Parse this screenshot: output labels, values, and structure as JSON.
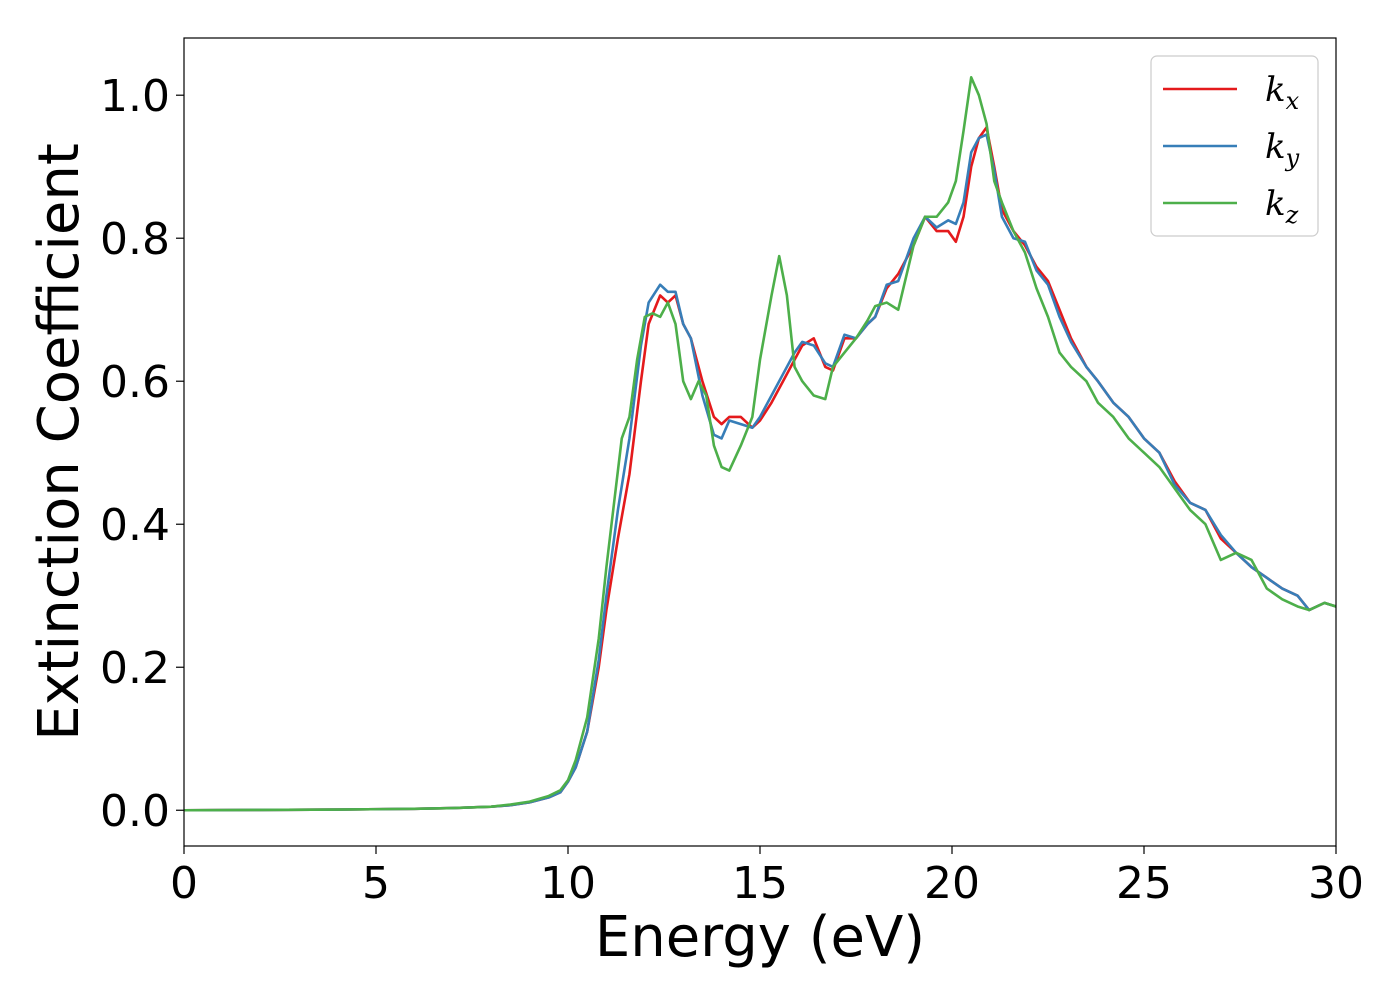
{
  "chart_data": {
    "type": "line",
    "title": "",
    "xlabel": "Energy (eV)",
    "ylabel": "Extinction Coefficient",
    "xlim": [
      0,
      30
    ],
    "ylim": [
      -0.05,
      1.08
    ],
    "xticks": [
      0,
      5,
      10,
      15,
      20,
      25,
      30
    ],
    "yticks": [
      0.0,
      0.2,
      0.4,
      0.6,
      0.8,
      1.0
    ],
    "xtick_labels": [
      "0",
      "5",
      "10",
      "15",
      "20",
      "25",
      "30"
    ],
    "ytick_labels": [
      "0.0",
      "0.2",
      "0.4",
      "0.6",
      "0.8",
      "1.0"
    ],
    "grid": false,
    "legend_position": "top-right",
    "series": [
      {
        "name": "k",
        "subscript": "x",
        "color": "#e41a1c",
        "x": [
          0,
          2,
          4,
          6,
          7,
          8,
          8.5,
          9,
          9.5,
          9.8,
          10,
          10.2,
          10.5,
          10.8,
          11.0,
          11.3,
          11.6,
          11.9,
          12.1,
          12.4,
          12.6,
          12.8,
          13.0,
          13.2,
          13.5,
          13.8,
          14.0,
          14.2,
          14.5,
          14.8,
          15.0,
          15.3,
          15.6,
          15.9,
          16.1,
          16.4,
          16.7,
          16.9,
          17.2,
          17.5,
          17.8,
          18.0,
          18.3,
          18.6,
          19.0,
          19.3,
          19.6,
          19.9,
          20.1,
          20.3,
          20.5,
          20.7,
          20.9,
          21.1,
          21.3,
          21.6,
          21.9,
          22.2,
          22.5,
          22.8,
          23.1,
          23.5,
          23.8,
          24.2,
          24.6,
          25.0,
          25.4,
          25.8,
          26.2,
          26.6,
          27.0,
          27.4,
          27.8,
          28.2,
          28.6,
          29.0,
          29.3,
          29.7,
          30.0
        ],
        "y": [
          0.0,
          0.0005,
          0.001,
          0.002,
          0.003,
          0.005,
          0.007,
          0.011,
          0.018,
          0.025,
          0.04,
          0.06,
          0.11,
          0.2,
          0.28,
          0.38,
          0.47,
          0.6,
          0.68,
          0.72,
          0.71,
          0.72,
          0.68,
          0.66,
          0.6,
          0.55,
          0.54,
          0.55,
          0.55,
          0.535,
          0.545,
          0.57,
          0.6,
          0.63,
          0.65,
          0.66,
          0.62,
          0.615,
          0.66,
          0.66,
          0.68,
          0.69,
          0.73,
          0.75,
          0.79,
          0.83,
          0.81,
          0.81,
          0.795,
          0.83,
          0.9,
          0.94,
          0.955,
          0.9,
          0.84,
          0.81,
          0.79,
          0.76,
          0.74,
          0.7,
          0.66,
          0.62,
          0.6,
          0.57,
          0.55,
          0.52,
          0.5,
          0.46,
          0.43,
          0.42,
          0.38,
          0.36,
          0.34,
          0.325,
          0.31,
          0.3,
          0.28,
          0.29,
          0.285
        ]
      },
      {
        "name": "k",
        "subscript": "y",
        "color": "#377eb8",
        "x": [
          0,
          2,
          4,
          6,
          7,
          8,
          8.5,
          9,
          9.5,
          9.8,
          10,
          10.2,
          10.5,
          10.8,
          11.0,
          11.3,
          11.6,
          11.9,
          12.1,
          12.4,
          12.6,
          12.8,
          13.0,
          13.2,
          13.5,
          13.8,
          14.0,
          14.2,
          14.5,
          14.8,
          15.0,
          15.3,
          15.6,
          15.9,
          16.1,
          16.4,
          16.7,
          16.9,
          17.2,
          17.5,
          17.8,
          18.0,
          18.3,
          18.6,
          19.0,
          19.3,
          19.6,
          19.9,
          20.1,
          20.3,
          20.5,
          20.7,
          20.9,
          21.1,
          21.3,
          21.6,
          21.9,
          22.2,
          22.5,
          22.8,
          23.1,
          23.5,
          23.8,
          24.2,
          24.6,
          25.0,
          25.4,
          25.8,
          26.2,
          26.6,
          27.0,
          27.4,
          27.8,
          28.2,
          28.6,
          29.0,
          29.3,
          29.7,
          30.0
        ],
        "y": [
          0.0,
          0.0005,
          0.001,
          0.002,
          0.003,
          0.005,
          0.007,
          0.011,
          0.018,
          0.025,
          0.04,
          0.06,
          0.11,
          0.21,
          0.3,
          0.42,
          0.52,
          0.65,
          0.71,
          0.735,
          0.725,
          0.725,
          0.68,
          0.66,
          0.58,
          0.525,
          0.52,
          0.545,
          0.54,
          0.535,
          0.55,
          0.58,
          0.61,
          0.64,
          0.655,
          0.65,
          0.625,
          0.62,
          0.665,
          0.66,
          0.68,
          0.69,
          0.735,
          0.74,
          0.8,
          0.83,
          0.815,
          0.825,
          0.82,
          0.85,
          0.92,
          0.94,
          0.945,
          0.895,
          0.83,
          0.8,
          0.795,
          0.755,
          0.735,
          0.69,
          0.655,
          0.62,
          0.6,
          0.57,
          0.55,
          0.52,
          0.5,
          0.455,
          0.43,
          0.42,
          0.385,
          0.36,
          0.34,
          0.325,
          0.31,
          0.3,
          0.28,
          0.29,
          0.285
        ]
      },
      {
        "name": "k",
        "subscript": "z",
        "color": "#4daf4a",
        "x": [
          0,
          2,
          4,
          6,
          7,
          8,
          8.5,
          9,
          9.5,
          9.8,
          10,
          10.2,
          10.5,
          10.8,
          11.0,
          11.2,
          11.4,
          11.6,
          11.8,
          12.0,
          12.2,
          12.4,
          12.6,
          12.8,
          13.0,
          13.2,
          13.4,
          13.6,
          13.8,
          14.0,
          14.2,
          14.5,
          14.8,
          15.0,
          15.3,
          15.5,
          15.7,
          15.9,
          16.1,
          16.4,
          16.7,
          16.9,
          17.2,
          17.5,
          17.8,
          18.0,
          18.3,
          18.6,
          19.0,
          19.3,
          19.6,
          19.9,
          20.1,
          20.3,
          20.5,
          20.7,
          20.9,
          21.1,
          21.3,
          21.6,
          21.9,
          22.2,
          22.5,
          22.8,
          23.1,
          23.5,
          23.8,
          24.2,
          24.6,
          25.0,
          25.4,
          25.8,
          26.2,
          26.6,
          27.0,
          27.4,
          27.8,
          28.2,
          28.6,
          29.0,
          29.3,
          29.7,
          30.0
        ],
        "y": [
          0.0,
          0.0005,
          0.001,
          0.002,
          0.003,
          0.005,
          0.008,
          0.012,
          0.02,
          0.028,
          0.042,
          0.07,
          0.13,
          0.24,
          0.34,
          0.43,
          0.52,
          0.55,
          0.63,
          0.69,
          0.695,
          0.69,
          0.71,
          0.68,
          0.6,
          0.575,
          0.6,
          0.58,
          0.51,
          0.48,
          0.475,
          0.51,
          0.55,
          0.63,
          0.72,
          0.775,
          0.72,
          0.62,
          0.6,
          0.58,
          0.575,
          0.62,
          0.64,
          0.66,
          0.685,
          0.705,
          0.71,
          0.7,
          0.79,
          0.83,
          0.83,
          0.85,
          0.88,
          0.95,
          1.025,
          1.0,
          0.96,
          0.88,
          0.85,
          0.81,
          0.78,
          0.73,
          0.69,
          0.64,
          0.62,
          0.6,
          0.57,
          0.55,
          0.52,
          0.5,
          0.48,
          0.45,
          0.42,
          0.4,
          0.35,
          0.36,
          0.35,
          0.31,
          0.295,
          0.285,
          0.28,
          0.29,
          0.285
        ]
      }
    ]
  }
}
